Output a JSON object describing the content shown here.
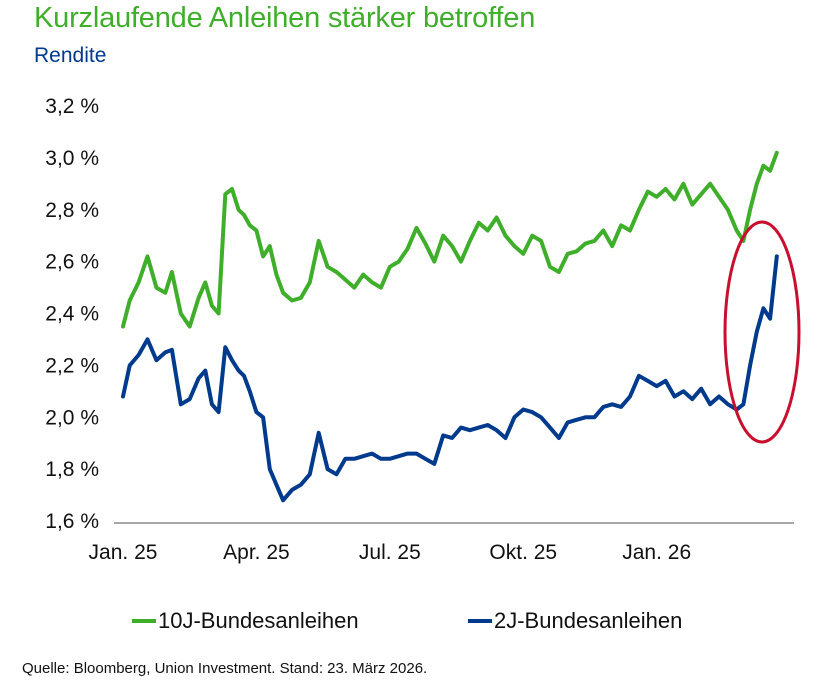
{
  "chart_data": {
    "type": "line",
    "title": "Kurzlaufende Anleihen stärker betroffen",
    "subtitle": "Rendite",
    "xlabel": "",
    "ylabel": "Rendite",
    "ylim": [
      1.6,
      3.2
    ],
    "yticks": [
      3.2,
      3.0,
      2.8,
      2.6,
      2.4,
      2.2,
      2.0,
      1.8,
      1.6
    ],
    "ytick_labels": [
      "3,2 %",
      "3,0 %",
      "2,8 %",
      "2,6 %",
      "2,4 %",
      "2,2 %",
      "2,0 %",
      "1,8 %",
      "1,6 %"
    ],
    "x_unit": "months since Jan 2025",
    "xlim": [
      0,
      14.75
    ],
    "xticks": [
      0,
      3,
      6,
      9,
      12
    ],
    "xtick_labels": [
      "Jan. 25",
      "Apr. 25",
      "Jul. 25",
      "Okt. 25",
      "Jan. 26"
    ],
    "grid": false,
    "legend_position": "bottom",
    "annotation": "red ellipse highlighting the March 2026 yield jump",
    "series": [
      {
        "name": "10J-Bundesanleihen",
        "color": "#3fae2a",
        "x": [
          0,
          0.15,
          0.35,
          0.55,
          0.75,
          0.95,
          1.1,
          1.3,
          1.5,
          1.7,
          1.85,
          2.0,
          2.15,
          2.3,
          2.45,
          2.6,
          2.72,
          2.85,
          3.0,
          3.15,
          3.3,
          3.45,
          3.6,
          3.8,
          4.0,
          4.2,
          4.4,
          4.6,
          4.8,
          5.0,
          5.2,
          5.4,
          5.6,
          5.8,
          6.0,
          6.2,
          6.4,
          6.6,
          6.8,
          7.0,
          7.2,
          7.4,
          7.6,
          7.8,
          8.0,
          8.2,
          8.4,
          8.6,
          8.8,
          9.0,
          9.2,
          9.4,
          9.6,
          9.8,
          10.0,
          10.2,
          10.4,
          10.6,
          10.8,
          11.0,
          11.2,
          11.4,
          11.6,
          11.8,
          12.0,
          12.2,
          12.4,
          12.6,
          12.8,
          13.0,
          13.2,
          13.4,
          13.6,
          13.8,
          13.95,
          14.1,
          14.25,
          14.4,
          14.55,
          14.7
        ],
        "values": [
          2.35,
          2.45,
          2.52,
          2.62,
          2.5,
          2.48,
          2.56,
          2.4,
          2.35,
          2.46,
          2.52,
          2.43,
          2.4,
          2.86,
          2.88,
          2.8,
          2.78,
          2.74,
          2.72,
          2.62,
          2.66,
          2.55,
          2.48,
          2.45,
          2.46,
          2.52,
          2.68,
          2.58,
          2.56,
          2.53,
          2.5,
          2.55,
          2.52,
          2.5,
          2.58,
          2.6,
          2.65,
          2.73,
          2.67,
          2.6,
          2.7,
          2.66,
          2.6,
          2.68,
          2.75,
          2.72,
          2.77,
          2.7,
          2.66,
          2.63,
          2.7,
          2.68,
          2.58,
          2.56,
          2.63,
          2.64,
          2.67,
          2.68,
          2.72,
          2.66,
          2.74,
          2.72,
          2.8,
          2.87,
          2.85,
          2.88,
          2.84,
          2.9,
          2.82,
          2.86,
          2.9,
          2.85,
          2.8,
          2.72,
          2.68,
          2.8,
          2.9,
          2.97,
          2.95,
          3.02
        ]
      },
      {
        "name": "2J-Bundesanleihen",
        "color": "#003a8c",
        "x": [
          0,
          0.15,
          0.35,
          0.55,
          0.75,
          0.95,
          1.1,
          1.3,
          1.5,
          1.7,
          1.85,
          2.0,
          2.15,
          2.3,
          2.45,
          2.6,
          2.72,
          2.85,
          3.0,
          3.15,
          3.3,
          3.45,
          3.6,
          3.8,
          4.0,
          4.2,
          4.4,
          4.6,
          4.8,
          5.0,
          5.2,
          5.4,
          5.6,
          5.8,
          6.0,
          6.2,
          6.4,
          6.6,
          6.8,
          7.0,
          7.2,
          7.4,
          7.6,
          7.8,
          8.0,
          8.2,
          8.4,
          8.6,
          8.8,
          9.0,
          9.2,
          9.4,
          9.6,
          9.8,
          10.0,
          10.2,
          10.4,
          10.6,
          10.8,
          11.0,
          11.2,
          11.4,
          11.6,
          11.8,
          12.0,
          12.2,
          12.4,
          12.6,
          12.8,
          13.0,
          13.2,
          13.4,
          13.6,
          13.8,
          13.95,
          14.1,
          14.25,
          14.4,
          14.55,
          14.7
        ],
        "values": [
          2.08,
          2.2,
          2.24,
          2.3,
          2.22,
          2.25,
          2.26,
          2.05,
          2.07,
          2.15,
          2.18,
          2.05,
          2.02,
          2.27,
          2.22,
          2.18,
          2.16,
          2.1,
          2.02,
          2.0,
          1.8,
          1.74,
          1.68,
          1.72,
          1.74,
          1.78,
          1.94,
          1.8,
          1.78,
          1.84,
          1.84,
          1.85,
          1.86,
          1.84,
          1.84,
          1.85,
          1.86,
          1.86,
          1.84,
          1.82,
          1.93,
          1.92,
          1.96,
          1.95,
          1.96,
          1.97,
          1.95,
          1.92,
          2.0,
          2.03,
          2.02,
          2.0,
          1.96,
          1.92,
          1.98,
          1.99,
          2.0,
          2.0,
          2.04,
          2.05,
          2.04,
          2.08,
          2.16,
          2.14,
          2.12,
          2.14,
          2.08,
          2.1,
          2.07,
          2.11,
          2.05,
          2.08,
          2.05,
          2.03,
          2.05,
          2.2,
          2.33,
          2.42,
          2.38,
          2.62
        ]
      }
    ]
  },
  "legend": {
    "items": [
      {
        "label": "10J-Bundesanleihen",
        "color": "#3fae2a"
      },
      {
        "label": "2J-Bundesanleihen",
        "color": "#003a8c"
      }
    ]
  },
  "source": "Quelle: Bloomberg, Union Investment. Stand: 23. März 2026.",
  "colors": {
    "axis": "#8c8c8c",
    "highlight": "#c8102e"
  }
}
